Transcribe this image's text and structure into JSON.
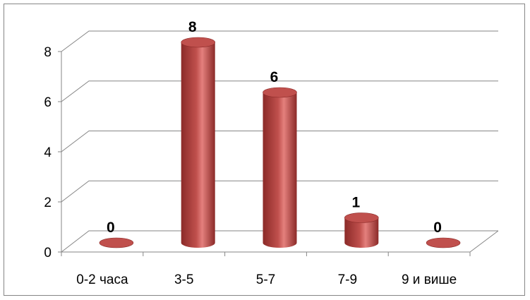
{
  "chart_data": {
    "type": "bar",
    "style": "3d-cylinder",
    "categories": [
      "0-2 часа",
      "3-5",
      "5-7",
      "7-9",
      "9 и више"
    ],
    "values": [
      0,
      8,
      6,
      1,
      0
    ],
    "data_labels": [
      "0",
      "8",
      "6",
      "1",
      "0"
    ],
    "y_ticks": [
      "0",
      "2",
      "4",
      "6",
      "8"
    ],
    "ylim": [
      0,
      8
    ],
    "grid": true,
    "legend": "none",
    "colors": {
      "bar": "#c0504d",
      "bar_light": "#e4807d",
      "bar_dark": "#8b2a28",
      "gridline": "#868686",
      "axis": "#868686"
    }
  }
}
